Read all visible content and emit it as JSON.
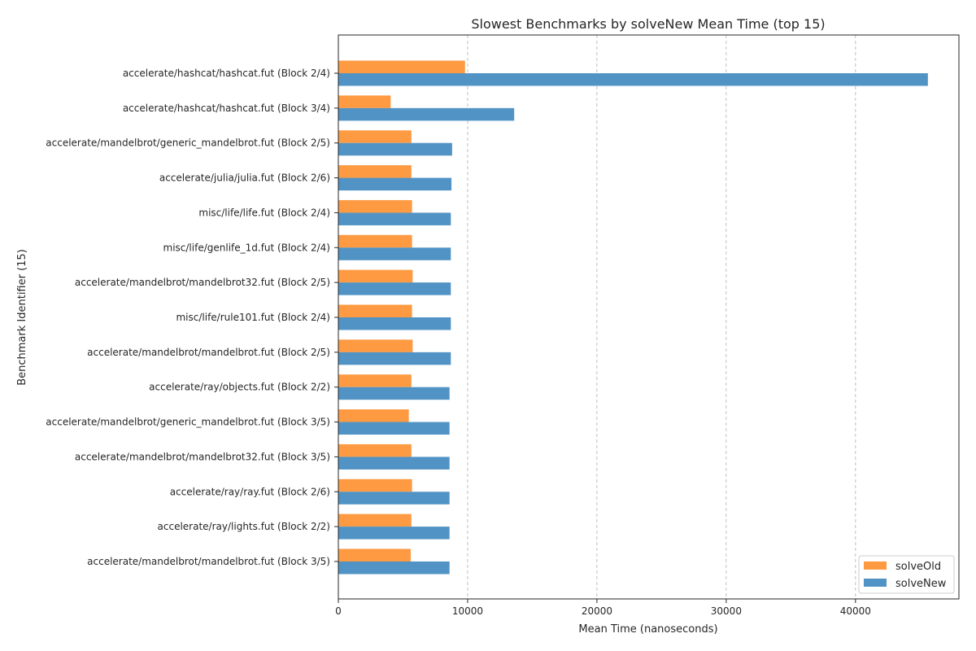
{
  "chart_data": {
    "type": "bar",
    "orientation": "horizontal",
    "title": "Slowest Benchmarks by solveNew Mean Time (top 15)",
    "xlabel": "Mean Time (nanoseconds)",
    "ylabel": "Benchmark Identifier (15)",
    "xlim": [
      0,
      48000
    ],
    "xticks": [
      0,
      10000,
      20000,
      30000,
      40000
    ],
    "grid": "x-dashed",
    "legend_position": "bottom-right",
    "categories": [
      "accelerate/hashcat/hashcat.fut (Block 2/4)",
      "accelerate/hashcat/hashcat.fut (Block 3/4)",
      "accelerate/mandelbrot/generic_mandelbrot.fut (Block 2/5)",
      "accelerate/julia/julia.fut (Block 2/6)",
      "misc/life/life.fut (Block 2/4)",
      "misc/life/genlife_1d.fut (Block 2/4)",
      "accelerate/mandelbrot/mandelbrot32.fut (Block 2/5)",
      "misc/life/rule101.fut (Block 2/4)",
      "accelerate/mandelbrot/mandelbrot.fut (Block 2/5)",
      "accelerate/ray/objects.fut (Block 2/2)",
      "accelerate/mandelbrot/generic_mandelbrot.fut (Block 3/5)",
      "accelerate/mandelbrot/mandelbrot32.fut (Block 3/5)",
      "accelerate/ray/ray.fut (Block 2/6)",
      "accelerate/ray/lights.fut (Block 2/2)",
      "accelerate/mandelbrot/mandelbrot.fut (Block 3/5)"
    ],
    "series": [
      {
        "name": "solveOld",
        "color": "#fd9a42",
        "values": [
          9800,
          4050,
          5650,
          5650,
          5700,
          5700,
          5750,
          5700,
          5750,
          5650,
          5450,
          5650,
          5700,
          5650,
          5600
        ]
      },
      {
        "name": "solveNew",
        "color": "#5093c4",
        "values": [
          45600,
          13600,
          8800,
          8750,
          8700,
          8700,
          8700,
          8700,
          8700,
          8600,
          8600,
          8600,
          8600,
          8600,
          8600
        ]
      }
    ]
  }
}
